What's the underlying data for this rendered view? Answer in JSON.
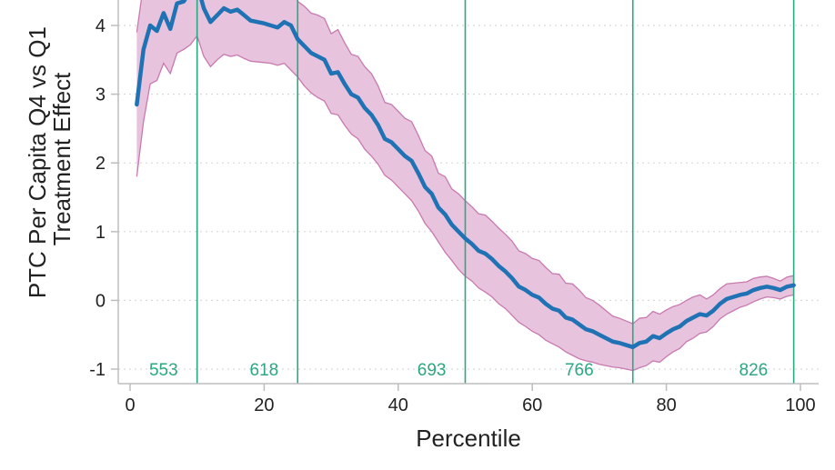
{
  "chart_data": {
    "type": "line",
    "xlabel": "Percentile",
    "ylabel_lines": [
      "PTC Per Capita Q4 vs Q1",
      "Treatment Effect"
    ],
    "xlim": [
      0,
      100
    ],
    "ylim": [
      -1.2,
      4.3
    ],
    "x_ticks": [
      0,
      20,
      40,
      60,
      80,
      100
    ],
    "y_ticks": [
      -1,
      0,
      1,
      2,
      3,
      4
    ],
    "grid": "horizontal-dotted",
    "colors": {
      "line": "#1f72b4",
      "band_fill": "#e8c3dd",
      "band_edge": "#c879b0",
      "vline": "#2aa880",
      "grid": "#d9d9d9",
      "axis": "#bdbdbd"
    },
    "vlines": [
      {
        "x": 10,
        "label": "553",
        "label_x": 5
      },
      {
        "x": 25,
        "label": "618",
        "label_x": 20
      },
      {
        "x": 50,
        "label": "693",
        "label_x": 45
      },
      {
        "x": 75,
        "label": "766",
        "label_x": 67
      },
      {
        "x": 99,
        "label": "826",
        "label_x": 93
      }
    ],
    "vline_label_y": -1.0,
    "series": [
      {
        "x": [
          1,
          2,
          3,
          4,
          5,
          6,
          7,
          8,
          9,
          10,
          11,
          12,
          13,
          14,
          15,
          16,
          17,
          18,
          19,
          20,
          21,
          22,
          23,
          24,
          25,
          26,
          27,
          28,
          29,
          30,
          31,
          32,
          33,
          34,
          35,
          36,
          37,
          38,
          39,
          40,
          41,
          42,
          43,
          44,
          45,
          46,
          47,
          48,
          49,
          50,
          51,
          52,
          53,
          54,
          55,
          56,
          57,
          58,
          59,
          60,
          61,
          62,
          63,
          64,
          65,
          66,
          67,
          68,
          69,
          70,
          71,
          72,
          73,
          74,
          75,
          76,
          77,
          78,
          79,
          80,
          81,
          82,
          83,
          84,
          85,
          86,
          87,
          88,
          89,
          90,
          91,
          92,
          93,
          94,
          95,
          96,
          97,
          98,
          99
        ],
        "y": [
          2.85,
          3.65,
          4.0,
          3.92,
          4.18,
          3.95,
          4.32,
          4.35,
          4.5,
          4.6,
          4.25,
          4.05,
          4.15,
          4.25,
          4.2,
          4.23,
          4.15,
          4.07,
          4.05,
          4.03,
          4.0,
          3.97,
          4.05,
          4.0,
          3.8,
          3.7,
          3.6,
          3.55,
          3.5,
          3.3,
          3.32,
          3.15,
          3.0,
          2.95,
          2.8,
          2.7,
          2.55,
          2.35,
          2.3,
          2.2,
          2.1,
          2.03,
          1.85,
          1.65,
          1.55,
          1.35,
          1.25,
          1.1,
          1.0,
          0.9,
          0.82,
          0.72,
          0.68,
          0.6,
          0.5,
          0.42,
          0.32,
          0.2,
          0.15,
          0.08,
          0.04,
          -0.05,
          -0.12,
          -0.15,
          -0.25,
          -0.28,
          -0.35,
          -0.42,
          -0.45,
          -0.5,
          -0.55,
          -0.6,
          -0.62,
          -0.65,
          -0.68,
          -0.62,
          -0.6,
          -0.52,
          -0.55,
          -0.48,
          -0.42,
          -0.38,
          -0.3,
          -0.25,
          -0.2,
          -0.22,
          -0.15,
          -0.05,
          0.02,
          0.05,
          0.08,
          0.1,
          0.15,
          0.18,
          0.2,
          0.18,
          0.15,
          0.2,
          0.22
        ],
        "lower": [
          1.8,
          2.6,
          3.15,
          3.2,
          3.45,
          3.3,
          3.6,
          3.65,
          3.72,
          3.85,
          3.55,
          3.4,
          3.5,
          3.58,
          3.55,
          3.57,
          3.52,
          3.48,
          3.47,
          3.46,
          3.45,
          3.42,
          3.45,
          3.35,
          3.25,
          3.12,
          3.02,
          2.95,
          2.9,
          2.72,
          2.7,
          2.55,
          2.42,
          2.35,
          2.2,
          2.1,
          1.98,
          1.82,
          1.75,
          1.65,
          1.55,
          1.45,
          1.3,
          1.12,
          1.0,
          0.85,
          0.7,
          0.58,
          0.45,
          0.35,
          0.28,
          0.18,
          0.12,
          0.05,
          -0.05,
          -0.12,
          -0.22,
          -0.32,
          -0.38,
          -0.45,
          -0.5,
          -0.58,
          -0.63,
          -0.68,
          -0.75,
          -0.8,
          -0.85,
          -0.88,
          -0.9,
          -0.93,
          -0.95,
          -0.97,
          -0.98,
          -1.0,
          -1.02,
          -0.98,
          -0.95,
          -0.88,
          -0.9,
          -0.82,
          -0.75,
          -0.7,
          -0.6,
          -0.55,
          -0.48,
          -0.46,
          -0.38,
          -0.27,
          -0.2,
          -0.15,
          -0.1,
          -0.07,
          -0.02,
          0.02,
          0.05,
          0.04,
          0.02,
          0.06,
          0.08
        ],
        "upper": [
          3.9,
          4.6,
          4.85,
          4.7,
          4.9,
          4.7,
          5.0,
          5.05,
          5.25,
          5.35,
          4.95,
          4.7,
          4.8,
          4.9,
          4.85,
          4.88,
          4.78,
          4.67,
          4.63,
          4.6,
          4.55,
          4.52,
          4.65,
          4.65,
          4.35,
          4.28,
          4.18,
          4.15,
          4.1,
          3.88,
          3.94,
          3.75,
          3.58,
          3.55,
          3.4,
          3.3,
          3.12,
          2.88,
          2.85,
          2.75,
          2.65,
          2.6,
          2.4,
          2.18,
          2.1,
          1.85,
          1.8,
          1.62,
          1.55,
          1.45,
          1.36,
          1.26,
          1.24,
          1.15,
          1.05,
          0.96,
          0.86,
          0.72,
          0.68,
          0.61,
          0.58,
          0.48,
          0.39,
          0.38,
          0.25,
          0.24,
          0.15,
          0.04,
          0.0,
          -0.07,
          -0.15,
          -0.23,
          -0.26,
          -0.3,
          -0.34,
          -0.26,
          -0.25,
          -0.16,
          -0.2,
          -0.14,
          -0.09,
          -0.06,
          0.0,
          0.05,
          0.08,
          0.02,
          0.08,
          0.17,
          0.24,
          0.25,
          0.26,
          0.27,
          0.32,
          0.34,
          0.35,
          0.32,
          0.28,
          0.34,
          0.36
        ]
      }
    ]
  }
}
